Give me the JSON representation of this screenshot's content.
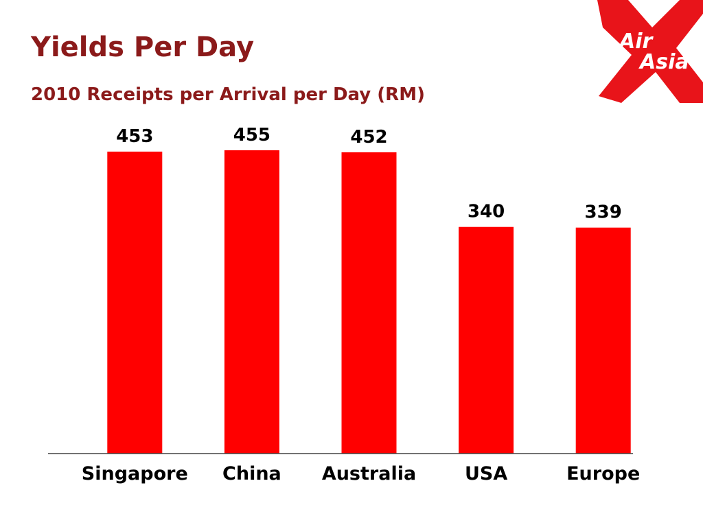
{
  "chart_data": {
    "type": "bar",
    "title": "Yields Per Day",
    "subtitle": "2010 Receipts per Arrival per Day (RM)",
    "categories": [
      "Singapore",
      "China",
      "Australia",
      "USA",
      "Europe"
    ],
    "values": [
      453,
      455,
      452,
      340,
      339
    ],
    "color": "#ff0000"
  },
  "logo_text": [
    "Air",
    "Asia"
  ]
}
